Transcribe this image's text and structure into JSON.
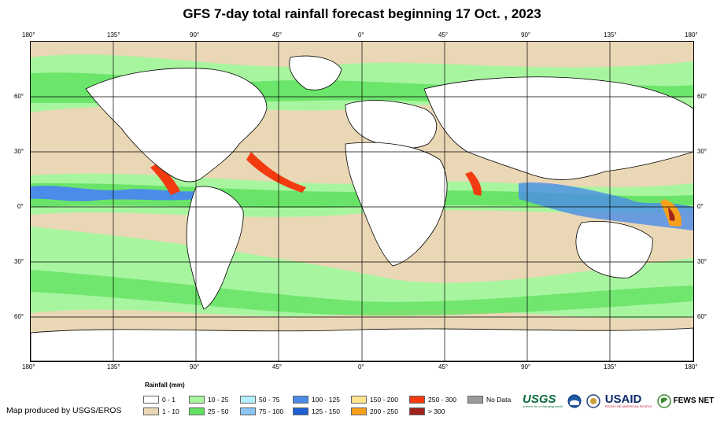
{
  "title": "GFS 7-day total rainfall forecast beginning 17 Oct. , 2023",
  "axes": {
    "top_longitudes": [
      "180°",
      "135°",
      "90°",
      "45°",
      "0°",
      "45°",
      "90°",
      "135°",
      "180°"
    ],
    "bottom_longitudes": [
      "180°",
      "135°",
      "90°",
      "45°",
      "0°",
      "45°",
      "90°",
      "135°",
      "180°"
    ],
    "left_latitudes": [
      "60°",
      "30°",
      "0°",
      "30°",
      "60°"
    ],
    "right_latitudes": [
      "60°",
      "30°",
      "0°",
      "30°",
      "60°"
    ]
  },
  "legend": {
    "title": "Rainfall (mm)",
    "items": [
      {
        "label": "0 - 1",
        "color": "#ffffff"
      },
      {
        "label": "1 - 10",
        "color": "#ead7b5"
      },
      {
        "label": "10 - 25",
        "color": "#a8f5a0"
      },
      {
        "label": "25 - 50",
        "color": "#62e262"
      },
      {
        "label": "50 - 75",
        "color": "#b3efff"
      },
      {
        "label": "75 - 100",
        "color": "#89c6f5"
      },
      {
        "label": "100 - 125",
        "color": "#4a8ce8"
      },
      {
        "label": "125 - 150",
        "color": "#1f5fd6"
      },
      {
        "label": "150 - 200",
        "color": "#fde58f"
      },
      {
        "label": "200 - 250",
        "color": "#f7a01c"
      },
      {
        "label": "250 - 300",
        "color": "#f23b10"
      },
      {
        "label": "> 300",
        "color": "#a0241c"
      },
      {
        "label": "No Data",
        "color": "#9b9b9b"
      }
    ]
  },
  "credit": "Map produced by USGS/EROS",
  "logos": {
    "usgs": "USGS",
    "usgs_tagline": "science for a changing world",
    "usaid": "USAID",
    "usaid_tagline": "FROM THE AMERICAN PEOPLE",
    "fewsnet": "FEWS NET"
  },
  "colors": {
    "ocean_base": "#ead7b5",
    "light_green": "#a8f5a0",
    "green": "#62e262",
    "land": "#ffffff",
    "coast": "#000000"
  }
}
